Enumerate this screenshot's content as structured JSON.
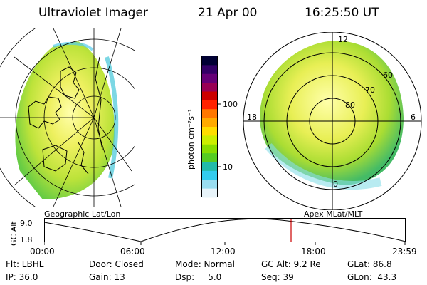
{
  "header": {
    "title": "Ultraviolet Imager",
    "date": "21 Apr 00",
    "time": "16:25:50 UT"
  },
  "colorbar": {
    "label": "photon cm⁻²s⁻¹",
    "ticks": [
      "100",
      "10"
    ],
    "colors": [
      "#000033",
      "#330066",
      "#660077",
      "#990055",
      "#cc0000",
      "#ff2200",
      "#ff7700",
      "#ffaa00",
      "#ffdd00",
      "#ccee00",
      "#88dd00",
      "#55cc22",
      "#22bbaa",
      "#33ccee",
      "#99ddf0",
      "#e8f4fa"
    ]
  },
  "panels": {
    "left_label": "Geographic Lat/Lon",
    "right_label": "Apex MLat/MLT"
  },
  "polar": {
    "mlt_labels": {
      "top": "12",
      "right": "6",
      "bottom": "0",
      "left": "18"
    },
    "lat_labels": [
      "60",
      "70",
      "80"
    ]
  },
  "altitude_plot": {
    "ylabel": "GC Alt",
    "yticks": [
      "9.0",
      "1.8"
    ],
    "xticks": [
      "00:00",
      "06:00",
      "12:00",
      "18:00",
      "23:59"
    ],
    "marker_color": "#cc0000"
  },
  "status": {
    "flt": "Flt: LBHL",
    "door": "Door: Closed",
    "mode": "Mode: Normal",
    "gc_alt": "GC Alt: 9.2 Re",
    "glat": "GLat:  86.8",
    "ip": "IP: 36.0",
    "gain": "Gain: 13",
    "dsp": "Dsp:     5.0",
    "seq": "Seq: 39",
    "glon": "GLon:  43.3"
  }
}
